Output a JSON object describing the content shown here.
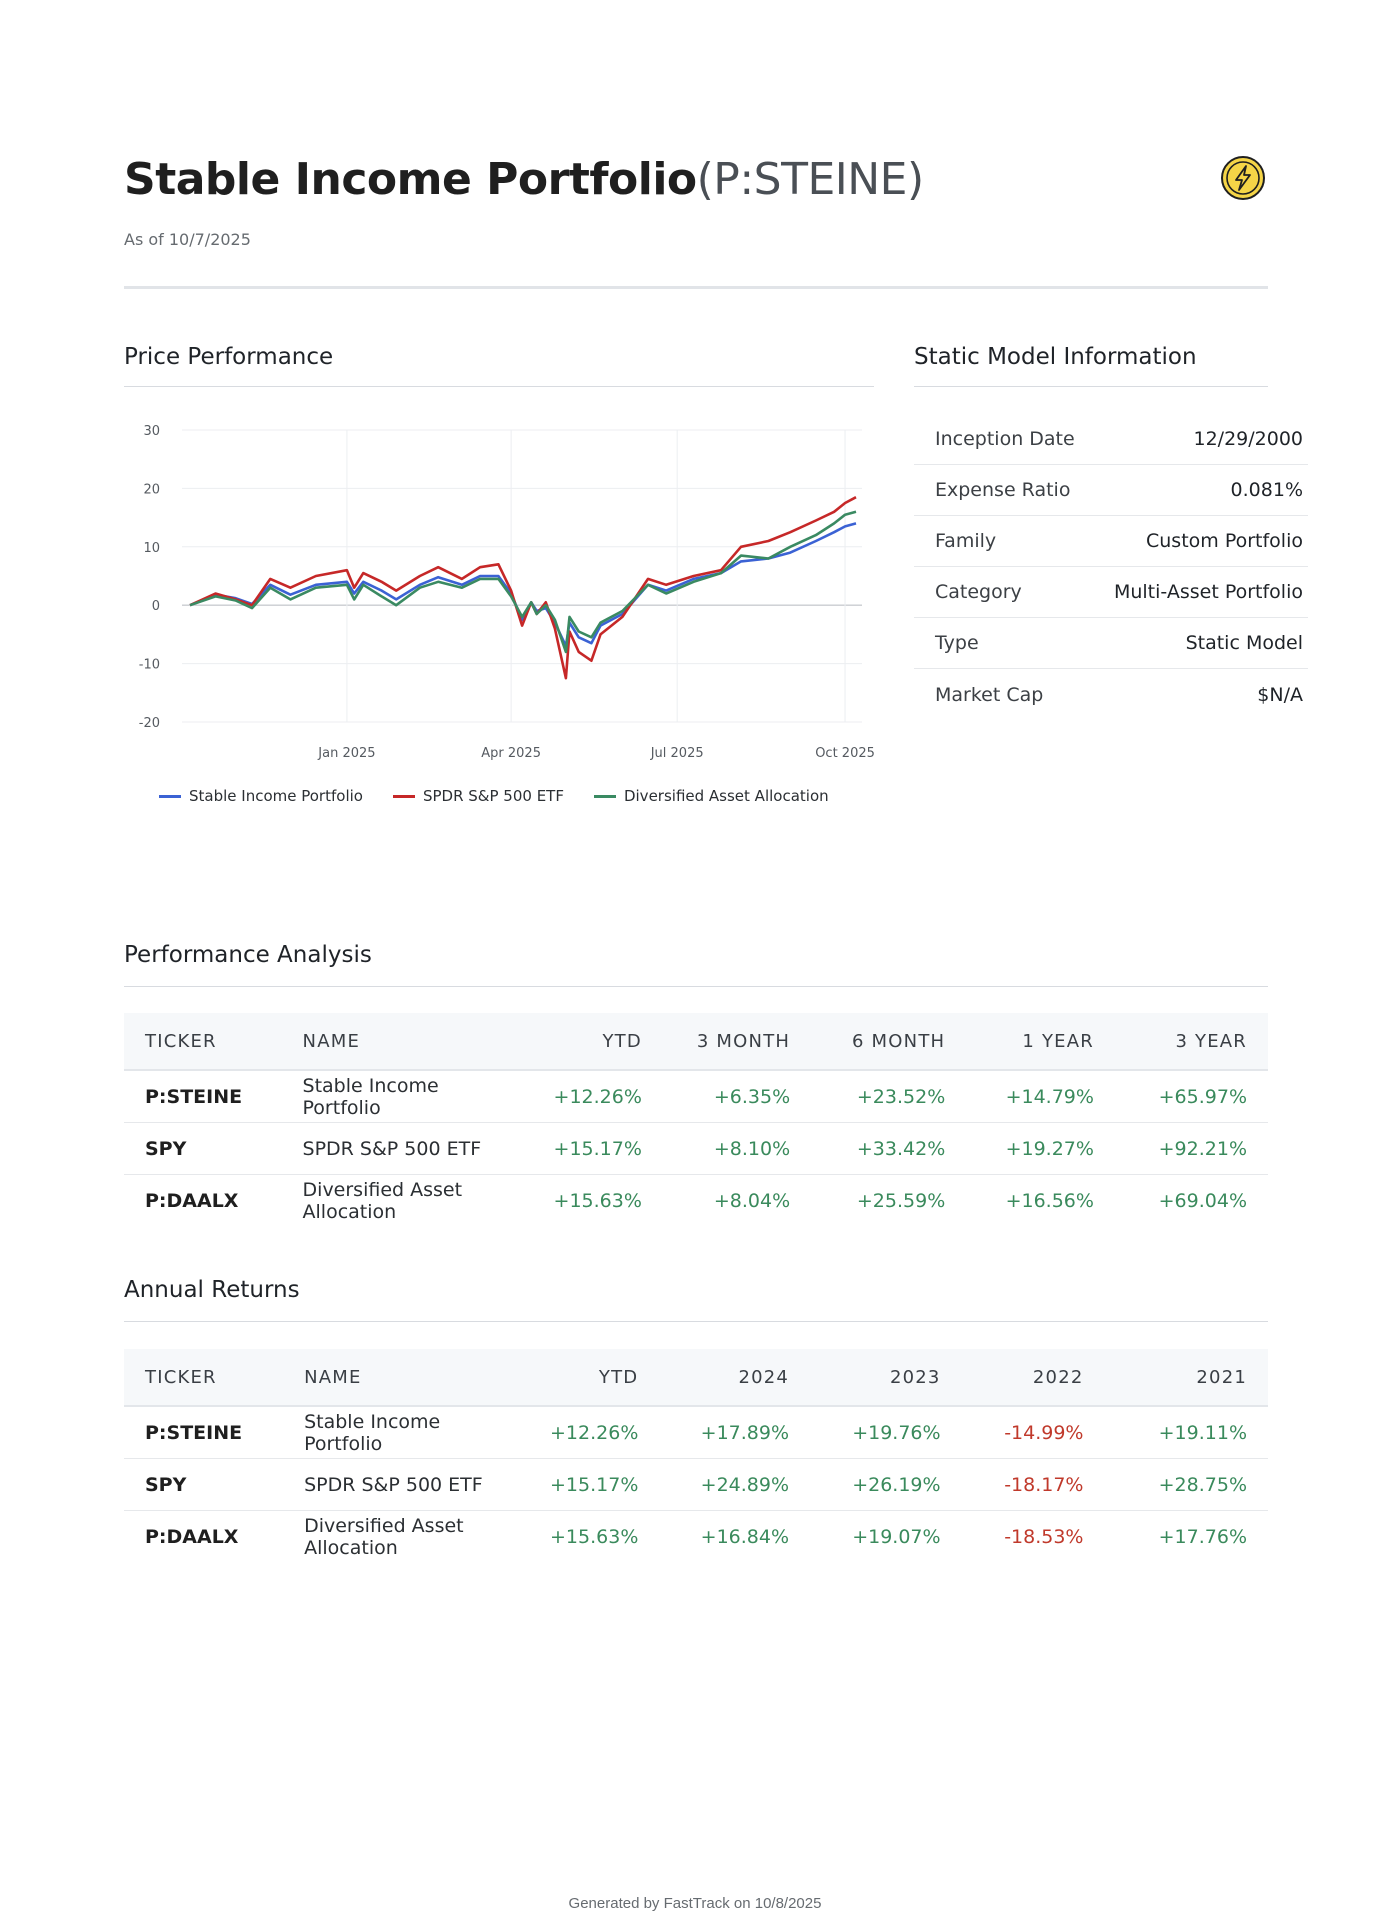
{
  "header": {
    "title": "Stable Income Portfolio",
    "ticker": "(P:STEINE)",
    "as_of": "As of 10/7/2025",
    "logo_icon": "lightning-bolt-icon"
  },
  "price_performance": {
    "heading": "Price Performance"
  },
  "chart_data": {
    "type": "line",
    "x_ticks": [
      "Jan 2025",
      "Apr 2025",
      "Jul 2025",
      "Oct 2025"
    ],
    "y_ticks": [
      "30",
      "20",
      "10",
      "0",
      "-10",
      "-20"
    ],
    "ylim": [
      -20,
      30
    ],
    "xlim": [
      "2024-10-07",
      "2025-10-07"
    ],
    "grid": true,
    "legend_position": "bottom",
    "series": [
      {
        "name": "Stable Income Portfolio",
        "color": "#3b62d4",
        "points": [
          [
            "2024-10-07",
            0
          ],
          [
            "2024-10-21",
            1.8
          ],
          [
            "2024-11-01",
            1.2
          ],
          [
            "2024-11-10",
            0.2
          ],
          [
            "2024-11-20",
            3.5
          ],
          [
            "2024-12-01",
            1.8
          ],
          [
            "2024-12-15",
            3.5
          ],
          [
            "2025-01-01",
            4.0
          ],
          [
            "2025-01-05",
            2.0
          ],
          [
            "2025-01-10",
            4.0
          ],
          [
            "2025-01-20",
            2.5
          ],
          [
            "2025-01-28",
            1.0
          ],
          [
            "2025-02-10",
            3.5
          ],
          [
            "2025-02-20",
            4.8
          ],
          [
            "2025-03-05",
            3.5
          ],
          [
            "2025-03-15",
            5.0
          ],
          [
            "2025-03-25",
            5.0
          ],
          [
            "2025-04-01",
            2.0
          ],
          [
            "2025-04-07",
            -2.5
          ],
          [
            "2025-04-12",
            0.5
          ],
          [
            "2025-04-15",
            -1.0
          ],
          [
            "2025-04-20",
            -0.5
          ],
          [
            "2025-04-25",
            -3.0
          ],
          [
            "2025-05-01",
            -7.0
          ],
          [
            "2025-05-03",
            -3.0
          ],
          [
            "2025-05-08",
            -5.5
          ],
          [
            "2025-05-15",
            -6.5
          ],
          [
            "2025-05-20",
            -3.5
          ],
          [
            "2025-06-01",
            -1.5
          ],
          [
            "2025-06-15",
            3.5
          ],
          [
            "2025-06-25",
            2.5
          ],
          [
            "2025-07-10",
            4.5
          ],
          [
            "2025-07-25",
            5.5
          ],
          [
            "2025-08-05",
            7.5
          ],
          [
            "2025-08-20",
            8.0
          ],
          [
            "2025-09-01",
            9.0
          ],
          [
            "2025-09-15",
            11.0
          ],
          [
            "2025-09-25",
            12.5
          ],
          [
            "2025-10-01",
            13.5
          ],
          [
            "2025-10-07",
            14.0
          ]
        ]
      },
      {
        "name": "SPDR S&P 500 ETF",
        "color": "#c62828",
        "points": [
          [
            "2024-10-07",
            0
          ],
          [
            "2024-10-21",
            2.0
          ],
          [
            "2024-11-01",
            1.0
          ],
          [
            "2024-11-10",
            0.0
          ],
          [
            "2024-11-20",
            4.5
          ],
          [
            "2024-12-01",
            3.0
          ],
          [
            "2024-12-15",
            5.0
          ],
          [
            "2025-01-01",
            6.0
          ],
          [
            "2025-01-05",
            3.0
          ],
          [
            "2025-01-10",
            5.5
          ],
          [
            "2025-01-20",
            4.0
          ],
          [
            "2025-01-28",
            2.5
          ],
          [
            "2025-02-10",
            5.0
          ],
          [
            "2025-02-20",
            6.5
          ],
          [
            "2025-03-05",
            4.5
          ],
          [
            "2025-03-15",
            6.5
          ],
          [
            "2025-03-25",
            7.0
          ],
          [
            "2025-04-01",
            2.5
          ],
          [
            "2025-04-07",
            -3.5
          ],
          [
            "2025-04-12",
            0.5
          ],
          [
            "2025-04-15",
            -1.5
          ],
          [
            "2025-04-20",
            0.5
          ],
          [
            "2025-04-25",
            -4.0
          ],
          [
            "2025-05-01",
            -12.5
          ],
          [
            "2025-05-03",
            -4.5
          ],
          [
            "2025-05-08",
            -8.0
          ],
          [
            "2025-05-15",
            -9.5
          ],
          [
            "2025-05-20",
            -5.0
          ],
          [
            "2025-06-01",
            -2.0
          ],
          [
            "2025-06-15",
            4.5
          ],
          [
            "2025-06-25",
            3.5
          ],
          [
            "2025-07-10",
            5.0
          ],
          [
            "2025-07-25",
            6.0
          ],
          [
            "2025-08-05",
            10.0
          ],
          [
            "2025-08-20",
            11.0
          ],
          [
            "2025-09-01",
            12.5
          ],
          [
            "2025-09-15",
            14.5
          ],
          [
            "2025-09-25",
            16.0
          ],
          [
            "2025-10-01",
            17.5
          ],
          [
            "2025-10-07",
            18.5
          ]
        ]
      },
      {
        "name": "Diversified Asset Allocation",
        "color": "#3a8a62",
        "points": [
          [
            "2024-10-07",
            0
          ],
          [
            "2024-10-21",
            1.5
          ],
          [
            "2024-11-01",
            0.8
          ],
          [
            "2024-11-10",
            -0.5
          ],
          [
            "2024-11-20",
            3.0
          ],
          [
            "2024-12-01",
            1.0
          ],
          [
            "2024-12-15",
            3.0
          ],
          [
            "2025-01-01",
            3.5
          ],
          [
            "2025-01-05",
            1.0
          ],
          [
            "2025-01-10",
            3.5
          ],
          [
            "2025-01-20",
            1.5
          ],
          [
            "2025-01-28",
            0.0
          ],
          [
            "2025-02-10",
            3.0
          ],
          [
            "2025-02-20",
            4.0
          ],
          [
            "2025-03-05",
            3.0
          ],
          [
            "2025-03-15",
            4.5
          ],
          [
            "2025-03-25",
            4.5
          ],
          [
            "2025-04-01",
            1.5
          ],
          [
            "2025-04-07",
            -2.0
          ],
          [
            "2025-04-12",
            0.5
          ],
          [
            "2025-04-15",
            -1.5
          ],
          [
            "2025-04-20",
            0.0
          ],
          [
            "2025-04-25",
            -2.5
          ],
          [
            "2025-05-01",
            -8.0
          ],
          [
            "2025-05-03",
            -2.0
          ],
          [
            "2025-05-08",
            -4.5
          ],
          [
            "2025-05-15",
            -5.5
          ],
          [
            "2025-05-20",
            -3.0
          ],
          [
            "2025-06-01",
            -1.0
          ],
          [
            "2025-06-15",
            3.5
          ],
          [
            "2025-06-25",
            2.0
          ],
          [
            "2025-07-10",
            4.0
          ],
          [
            "2025-07-25",
            5.5
          ],
          [
            "2025-08-05",
            8.5
          ],
          [
            "2025-08-20",
            8.0
          ],
          [
            "2025-09-01",
            10.0
          ],
          [
            "2025-09-15",
            12.0
          ],
          [
            "2025-09-25",
            14.0
          ],
          [
            "2025-10-01",
            15.5
          ],
          [
            "2025-10-07",
            16.0
          ]
        ]
      }
    ]
  },
  "static_info": {
    "heading": "Static Model Information",
    "rows": [
      {
        "label": "Inception Date",
        "value": "12/29/2000"
      },
      {
        "label": "Expense Ratio",
        "value": "0.081%"
      },
      {
        "label": "Family",
        "value": "Custom Portfolio"
      },
      {
        "label": "Category",
        "value": "Multi-Asset Portfolio"
      },
      {
        "label": "Type",
        "value": "Static Model"
      },
      {
        "label": "Market Cap",
        "value": "$N/A"
      }
    ]
  },
  "performance": {
    "heading": "Performance Analysis",
    "columns": [
      "TICKER",
      "NAME",
      "YTD",
      "3 MONTH",
      "6 MONTH",
      "1 YEAR",
      "3 YEAR"
    ],
    "rows": [
      {
        "ticker": "P:STEINE",
        "name": "Stable Income Portfolio",
        "values": [
          "+12.26%",
          "+6.35%",
          "+23.52%",
          "+14.79%",
          "+65.97%"
        ]
      },
      {
        "ticker": "SPY",
        "name": "SPDR S&P 500 ETF",
        "values": [
          "+15.17%",
          "+8.10%",
          "+33.42%",
          "+19.27%",
          "+92.21%"
        ]
      },
      {
        "ticker": "P:DAALX",
        "name": "Diversified Asset Allocation",
        "values": [
          "+15.63%",
          "+8.04%",
          "+25.59%",
          "+16.56%",
          "+69.04%"
        ]
      }
    ]
  },
  "annual": {
    "heading": "Annual Returns",
    "columns": [
      "TICKER",
      "NAME",
      "YTD",
      "2024",
      "2023",
      "2022",
      "2021"
    ],
    "rows": [
      {
        "ticker": "P:STEINE",
        "name": "Stable Income Portfolio",
        "values": [
          "+12.26%",
          "+17.89%",
          "+19.76%",
          "-14.99%",
          "+19.11%"
        ]
      },
      {
        "ticker": "SPY",
        "name": "SPDR S&P 500 ETF",
        "values": [
          "+15.17%",
          "+24.89%",
          "+26.19%",
          "-18.17%",
          "+28.75%"
        ]
      },
      {
        "ticker": "P:DAALX",
        "name": "Diversified Asset Allocation",
        "values": [
          "+15.63%",
          "+16.84%",
          "+19.07%",
          "-18.53%",
          "+17.76%"
        ]
      }
    ]
  },
  "footer": {
    "text": "Generated by FastTrack on 10/8/2025"
  }
}
